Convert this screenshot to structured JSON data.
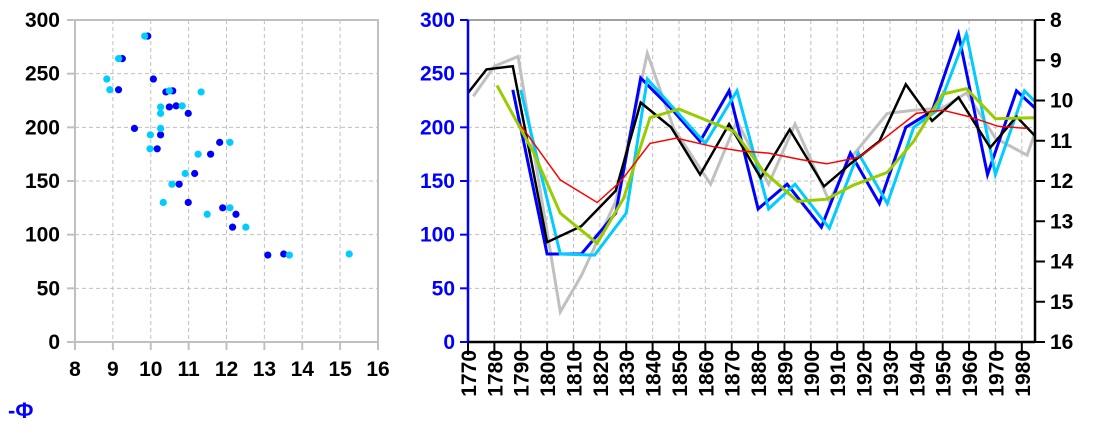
{
  "chart_data": [
    {
      "type": "scatter",
      "title": "",
      "xlabel": "-Φ",
      "ylabel": "",
      "xlim": [
        8,
        16
      ],
      "ylim": [
        0,
        300
      ],
      "xticks": [
        "8",
        "9",
        "10",
        "11",
        "12",
        "13",
        "14",
        "15",
        "16"
      ],
      "yticks": [
        "0",
        "50",
        "100",
        "150",
        "200",
        "250",
        "300"
      ],
      "grid": true,
      "series": [
        {
          "name": "dark blue",
          "color": "#0000ff",
          "points": [
            [
              9.92,
              285
            ],
            [
              9.25,
              264
            ],
            [
              10.07,
              245
            ],
            [
              9.15,
              235
            ],
            [
              10.58,
              234
            ],
            [
              10.4,
              233
            ],
            [
              10.49,
              219
            ],
            [
              10.67,
              220
            ],
            [
              10.99,
              213
            ],
            [
              9.57,
              199
            ],
            [
              10.26,
              193
            ],
            [
              10.17,
              180
            ],
            [
              11.82,
              186
            ],
            [
              11.58,
              175
            ],
            [
              11.16,
              157
            ],
            [
              10.75,
              147
            ],
            [
              10.99,
              130
            ],
            [
              11.9,
              125
            ],
            [
              12.25,
              119
            ],
            [
              12.16,
              107
            ],
            [
              13.09,
              81
            ],
            [
              13.51,
              82
            ]
          ]
        },
        {
          "name": "light blue",
          "color": "#00ccff",
          "points": [
            [
              9.84,
              285
            ],
            [
              9.15,
              264
            ],
            [
              8.84,
              245
            ],
            [
              8.92,
              235
            ],
            [
              10.49,
              234
            ],
            [
              11.33,
              233
            ],
            [
              10.26,
              219
            ],
            [
              10.83,
              220
            ],
            [
              10.26,
              213
            ],
            [
              10.26,
              199
            ],
            [
              9.99,
              193
            ],
            [
              9.98,
              180
            ],
            [
              12.09,
              186
            ],
            [
              11.25,
              175
            ],
            [
              10.91,
              157
            ],
            [
              10.56,
              147
            ],
            [
              10.33,
              130
            ],
            [
              12.09,
              125
            ],
            [
              11.49,
              119
            ],
            [
              12.51,
              107
            ],
            [
              13.66,
              81
            ],
            [
              15.24,
              82
            ]
          ]
        }
      ]
    },
    {
      "type": "line",
      "title": "",
      "xlabel": "",
      "ylabel": "",
      "xlim": [
        1770,
        1985
      ],
      "ylim": [
        0,
        300
      ],
      "y2lim": [
        16,
        8
      ],
      "xticks": [
        "1770",
        "1780",
        "1790",
        "1800",
        "1810",
        "1820",
        "1830",
        "1840",
        "1850",
        "1860",
        "1870",
        "1880",
        "1890",
        "1900",
        "1910",
        "1920",
        "1930",
        "1940",
        "1950",
        "1960",
        "1970",
        "1980"
      ],
      "yticks": [
        "0",
        "50",
        "100",
        "150",
        "200",
        "250",
        "300"
      ],
      "y2ticks": [
        "8",
        "9",
        "10",
        "11",
        "12",
        "13",
        "14",
        "15",
        "16"
      ],
      "grid": true,
      "series": [
        {
          "name": "gray",
          "color": "#c0c0c0",
          "width": 3,
          "points": [
            [
              1772,
              229
            ],
            [
              1780,
              257
            ],
            [
              1789,
              266
            ],
            [
              1805,
              28
            ],
            [
              1813,
              62
            ],
            [
              1826,
              131
            ],
            [
              1838,
              269
            ],
            [
              1848,
              199
            ],
            [
              1862,
              147
            ],
            [
              1872,
              206
            ],
            [
              1884,
              147
            ],
            [
              1894,
              203
            ],
            [
              1907,
              131
            ],
            [
              1915,
              171
            ],
            [
              1929,
              213
            ],
            [
              1939,
              216
            ],
            [
              1950,
              218
            ],
            [
              1959,
              232
            ],
            [
              1970,
              190
            ],
            [
              1982,
              174
            ],
            [
              1985,
              195
            ]
          ]
        },
        {
          "name": "blue",
          "color": "#0000ff",
          "width": 3,
          "points": [
            [
              1787,
              235
            ],
            [
              1800,
              82
            ],
            [
              1813,
              82
            ],
            [
              1826,
              120
            ],
            [
              1835.5,
              246
            ],
            [
              1848,
              215
            ],
            [
              1858,
              187
            ],
            [
              1869,
              234
            ],
            [
              1880,
              124
            ],
            [
              1891,
              147
            ],
            [
              1904,
              107
            ],
            [
              1915,
              176
            ],
            [
              1926,
              129
            ],
            [
              1936,
              200
            ],
            [
              1946,
              215
            ],
            [
              1956,
              287
            ],
            [
              1967,
              156
            ],
            [
              1978,
              234
            ],
            [
              1985,
              218
            ]
          ]
        },
        {
          "name": "cyan",
          "color": "#00ccff",
          "width": 3,
          "points": [
            [
              1790,
              235
            ],
            [
              1805,
              82
            ],
            [
              1818,
              81
            ],
            [
              1830,
              120
            ],
            [
              1838,
              245
            ],
            [
              1860,
              185
            ],
            [
              1872,
              234
            ],
            [
              1884,
              124
            ],
            [
              1894,
              147
            ],
            [
              1907,
              106
            ],
            [
              1918,
              176
            ],
            [
              1929,
              129
            ],
            [
              1939,
              200
            ],
            [
              1948,
              216
            ],
            [
              1959,
              287
            ],
            [
              1970,
              156
            ],
            [
              1981,
              234
            ],
            [
              1985,
              224
            ]
          ]
        },
        {
          "name": "black",
          "color": "#000000",
          "width": 2.5,
          "points": [
            [
              1770,
              232
            ],
            [
              1777,
              254
            ],
            [
              1787,
              257
            ],
            [
              1800,
              93
            ],
            [
              1813,
              108
            ],
            [
              1826,
              141
            ],
            [
              1835.5,
              223
            ],
            [
              1847,
              200
            ],
            [
              1858,
              156
            ],
            [
              1869,
              203
            ],
            [
              1881,
              153
            ],
            [
              1892,
              198
            ],
            [
              1905,
              145
            ],
            [
              1915,
              166
            ],
            [
              1926,
              187
            ],
            [
              1936,
              240
            ],
            [
              1946,
              206
            ],
            [
              1956,
              228
            ],
            [
              1968,
              181
            ],
            [
              1978,
              210
            ],
            [
              1985,
              192
            ]
          ]
        },
        {
          "name": "green",
          "color": "#99cc00",
          "width": 3,
          "points": [
            [
              1781,
              239
            ],
            [
              1795,
              176
            ],
            [
              1805,
              120
            ],
            [
              1819,
              92
            ],
            [
              1829,
              134
            ],
            [
              1839,
              209
            ],
            [
              1850,
              217
            ],
            [
              1871,
              196
            ],
            [
              1882,
              159
            ],
            [
              1895,
              131
            ],
            [
              1906,
              133
            ],
            [
              1916,
              146
            ],
            [
              1929,
              158
            ],
            [
              1939,
              187
            ],
            [
              1950,
              231
            ],
            [
              1959,
              236
            ],
            [
              1970,
              208
            ],
            [
              1985,
              209
            ]
          ]
        },
        {
          "name": "red",
          "color": "#ff0000",
          "width": 1.5,
          "points": [
            [
              1790,
              202
            ],
            [
              1805,
              151
            ],
            [
              1819,
              130
            ],
            [
              1828,
              150
            ],
            [
              1839,
              185
            ],
            [
              1849,
              190
            ],
            [
              1863,
              182
            ],
            [
              1873,
              178
            ],
            [
              1884,
              176
            ],
            [
              1896,
              170
            ],
            [
              1906,
              166
            ],
            [
              1918,
              172
            ],
            [
              1927,
              188
            ],
            [
              1940,
              213
            ],
            [
              1950,
              216
            ],
            [
              1960,
              210
            ],
            [
              1971,
              201
            ],
            [
              1982,
              199
            ]
          ]
        }
      ]
    }
  ]
}
